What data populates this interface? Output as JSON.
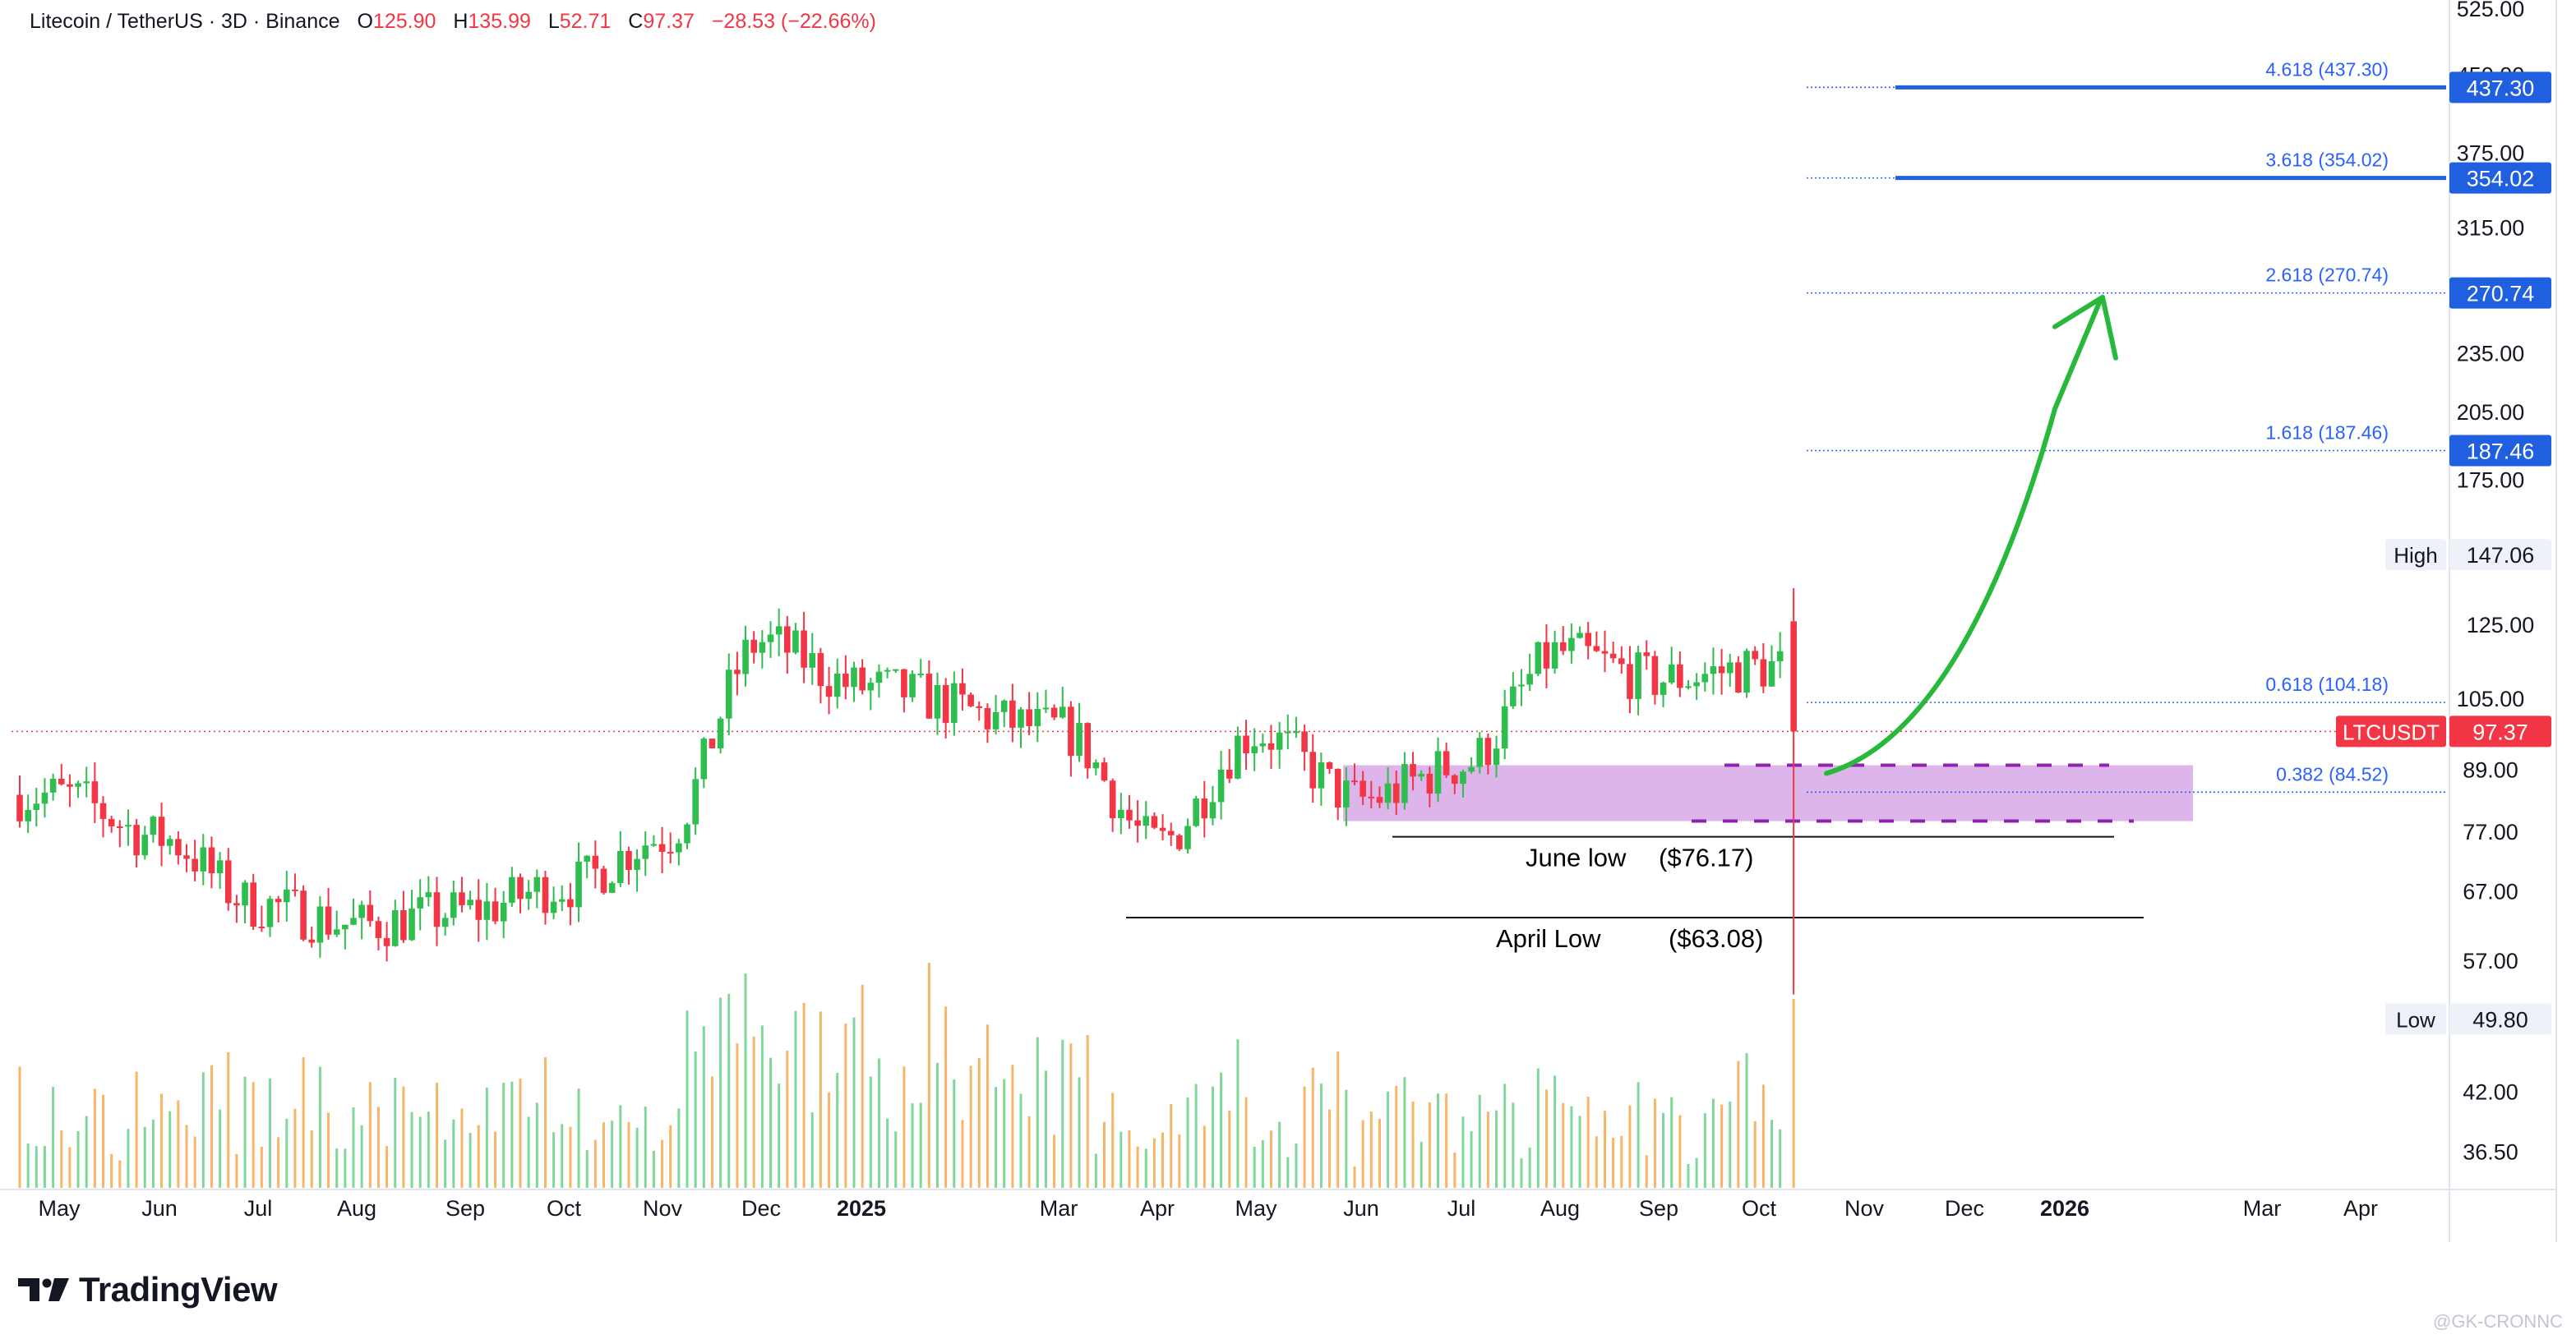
{
  "header": {
    "symbol": "Litecoin / TetherUS · 3D · Binance",
    "o_label": "O",
    "o": "125.90",
    "h_label": "H",
    "h": "135.99",
    "l_label": "L",
    "l": "52.71",
    "c_label": "C",
    "c": "97.37",
    "change": "−28.53 (−22.66%)"
  },
  "brand": {
    "name": "TradingView"
  },
  "watermark": "@GK-CRONNC",
  "colors": {
    "up": "#26a69a",
    "upBright": "#2ebd4f",
    "down": "#f23645",
    "volUp": "#7fd89a",
    "volDown": "#f7b567",
    "fib": "#2962ff",
    "target": "#1f5fe0",
    "zone": "#d8a8e6",
    "zoneDash": "#8e24aa",
    "arrow": "#27b83c",
    "priceLine": "#f23645",
    "axisText": "#131722"
  },
  "chart_data": {
    "type": "candlestick",
    "symbol": "LTCUSDT",
    "interval": "3D",
    "y_scale": "log",
    "ylim": [
      34.5,
      530
    ],
    "x_labels": [
      "May",
      "Jun",
      "Jul",
      "Aug",
      "Sep",
      "Oct",
      "Nov",
      "Dec",
      "2025",
      "Mar",
      "Apr",
      "May",
      "Jun",
      "Jul",
      "Aug",
      "Sep",
      "Oct",
      "Nov",
      "Dec",
      "2026",
      "Mar",
      "Apr"
    ],
    "x_bold": [
      "2025",
      "2026"
    ],
    "y_ticks": [
      "525.00",
      "450.00",
      "375.00",
      "315.00",
      "235.00",
      "205.00",
      "175.00",
      "105.00",
      "89.00",
      "77.00",
      "67.00",
      "57.00",
      "42.00",
      "36.50"
    ],
    "price_labels": [
      {
        "text": "437.30",
        "value": 437.3,
        "style": "fib-label"
      },
      {
        "text": "354.02",
        "value": 354.02,
        "style": "fib-label"
      },
      {
        "text": "270.74",
        "value": 270.74,
        "style": "fib-label"
      },
      {
        "text": "187.46",
        "value": 187.46,
        "style": "fib-label"
      },
      {
        "text": "147.06",
        "value": 147.06,
        "tag": "High",
        "style": "hilo"
      },
      {
        "text": "125.00",
        "value": 125.0,
        "style": "plain"
      },
      {
        "text": "97.37",
        "value": 97.37,
        "tag": "LTCUSDT",
        "style": "last"
      },
      {
        "text": "49.80",
        "value": 49.8,
        "tag": "Low",
        "style": "hilo"
      }
    ],
    "fib_levels": [
      {
        "ratio": "4.618",
        "value": 437.3,
        "label": "4.618 (437.30)",
        "thick": true
      },
      {
        "ratio": "3.618",
        "value": 354.02,
        "label": "3.618 (354.02)",
        "thick": true
      },
      {
        "ratio": "2.618",
        "value": 270.74,
        "label": "2.618 (270.74)",
        "thick": false
      },
      {
        "ratio": "1.618",
        "value": 187.46,
        "label": "1.618 (187.46)",
        "thick": false
      },
      {
        "ratio": "0.618",
        "value": 104.18,
        "label": "0.618 (104.18)",
        "thick": false
      },
      {
        "ratio": "0.382",
        "value": 84.52,
        "label": "0.382 (84.52)",
        "thick": false
      }
    ],
    "support_lines": [
      {
        "name": "June low",
        "value": 76.17,
        "price_text": "($76.17)"
      },
      {
        "name": "April Low",
        "value": 63.08,
        "price_text": "($63.08)"
      }
    ],
    "zone": {
      "low": 79.0,
      "high": 90.0
    },
    "last_price": 97.37,
    "arrow": {
      "from": 90.0,
      "to": 260.0,
      "direction": "up"
    },
    "anchors": [
      {
        "x": "May",
        "price": 84
      },
      {
        "x": "Jun",
        "price": 76
      },
      {
        "x": "Jul",
        "price": 65
      },
      {
        "x": "Aug",
        "price": 62
      },
      {
        "x": "Sep",
        "price": 64
      },
      {
        "x": "Oct",
        "price": 68
      },
      {
        "x": "Nov",
        "price": 76
      },
      {
        "x": "Dec",
        "price": 120
      },
      {
        "x": "2025",
        "price": 108
      },
      {
        "x": "Mar",
        "price": 98
      },
      {
        "x": "Apr",
        "price": 75
      },
      {
        "x": "May",
        "price": 97
      },
      {
        "x": "Jun",
        "price": 83
      },
      {
        "x": "Jul",
        "price": 90
      },
      {
        "x": "Aug",
        "price": 117
      },
      {
        "x": "Sep",
        "price": 110
      },
      {
        "x": "Oct",
        "price": 113
      }
    ]
  }
}
